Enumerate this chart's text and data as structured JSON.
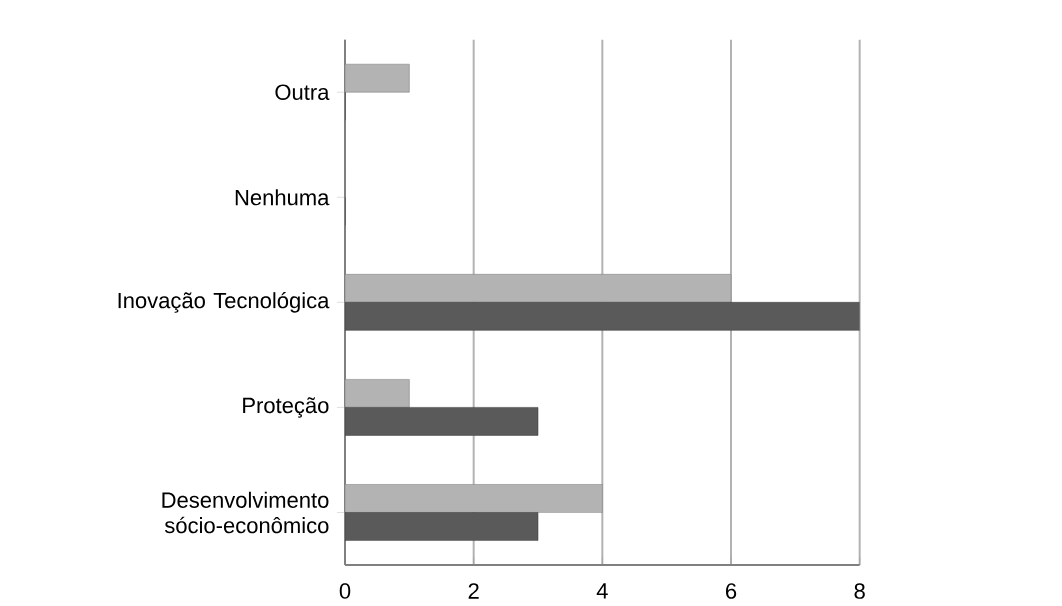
{
  "chart_data": {
    "type": "bar",
    "orientation": "horizontal",
    "categories": [
      "Outra",
      "Nenhuma",
      "Inovação Tecnológica",
      "Proteção",
      "Desenvolvimento sócio-econômico"
    ],
    "series": [
      {
        "color": "#b3b3b3",
        "values": [
          1,
          0,
          6,
          1,
          4
        ]
      },
      {
        "color": "#5a5a5a",
        "values": [
          0,
          0,
          8,
          3,
          3
        ]
      }
    ],
    "xlim": [
      0,
      8
    ],
    "xticks": [
      0,
      2,
      4,
      6,
      8
    ],
    "grid": "x"
  }
}
